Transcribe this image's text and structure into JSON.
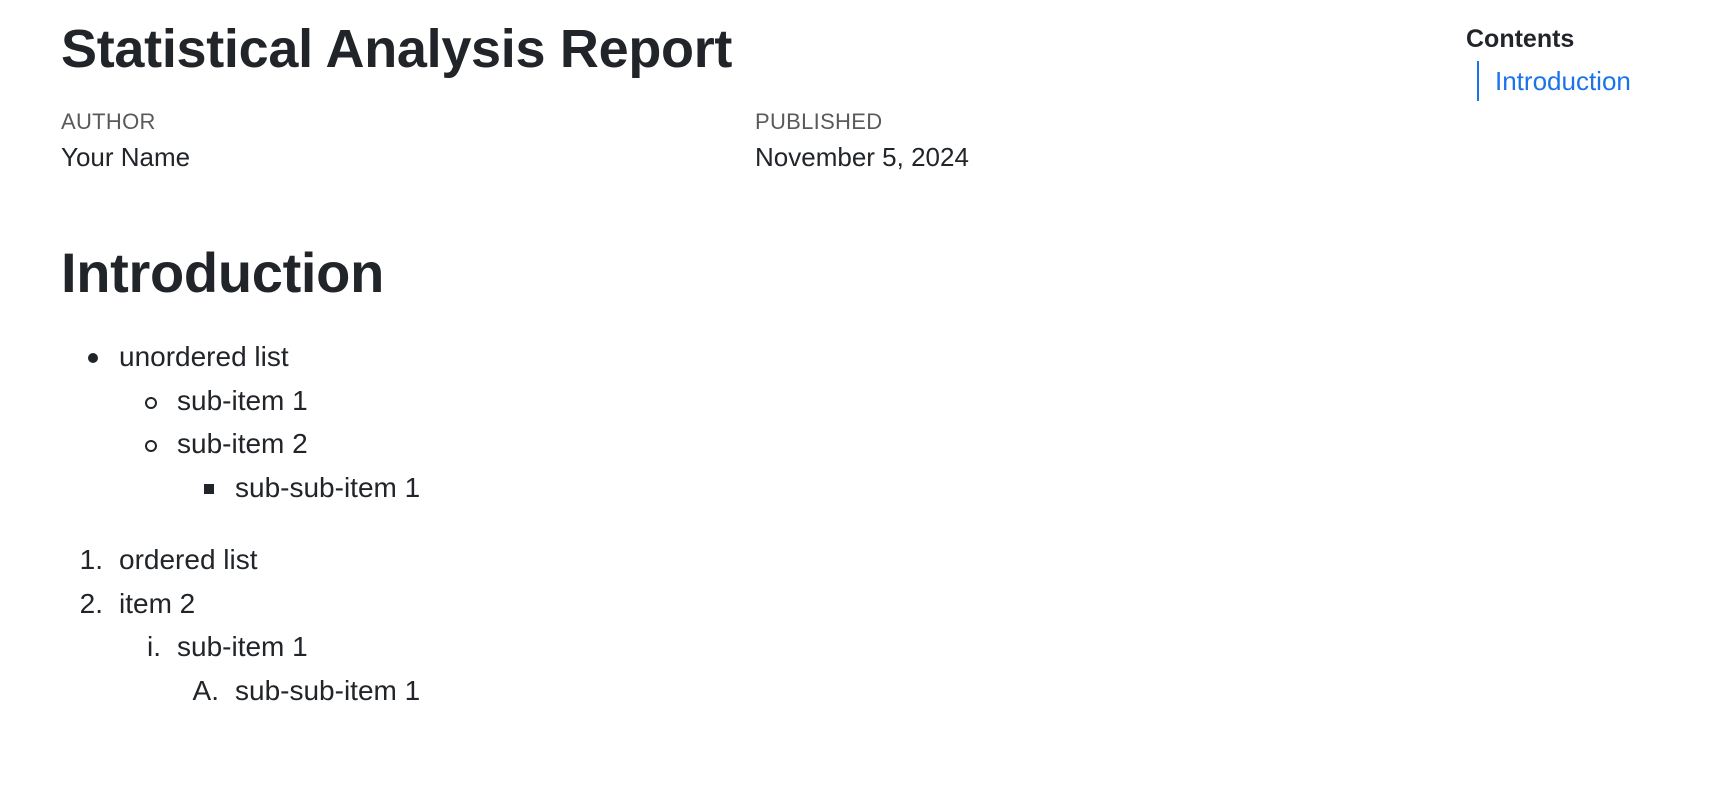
{
  "document": {
    "title": "Statistical Analysis Report",
    "author_heading": "AUTHOR",
    "author": "Your Name",
    "published_heading": "PUBLISHED",
    "published": "November 5, 2024"
  },
  "sections": [
    {
      "heading": "Introduction",
      "unordered_list": [
        {
          "text": "unordered list",
          "marker": "disc"
        },
        {
          "text": "sub-item 1",
          "marker": "circle"
        },
        {
          "text": "sub-item 2",
          "marker": "circle"
        },
        {
          "text": "sub-sub-item 1",
          "marker": "square"
        }
      ],
      "ordered_list": [
        {
          "marker": "1.",
          "text": "ordered list"
        },
        {
          "marker": "2.",
          "text": "item 2"
        },
        {
          "marker": "i.",
          "text": "sub-item 1"
        },
        {
          "marker": "A.",
          "text": "sub-sub-item 1"
        }
      ]
    }
  ],
  "toc": {
    "title": "Contents",
    "items": [
      {
        "label": "Introduction"
      }
    ]
  },
  "colors": {
    "text": "#212529",
    "muted": "#5a5a5a",
    "link": "#1a73e8"
  }
}
